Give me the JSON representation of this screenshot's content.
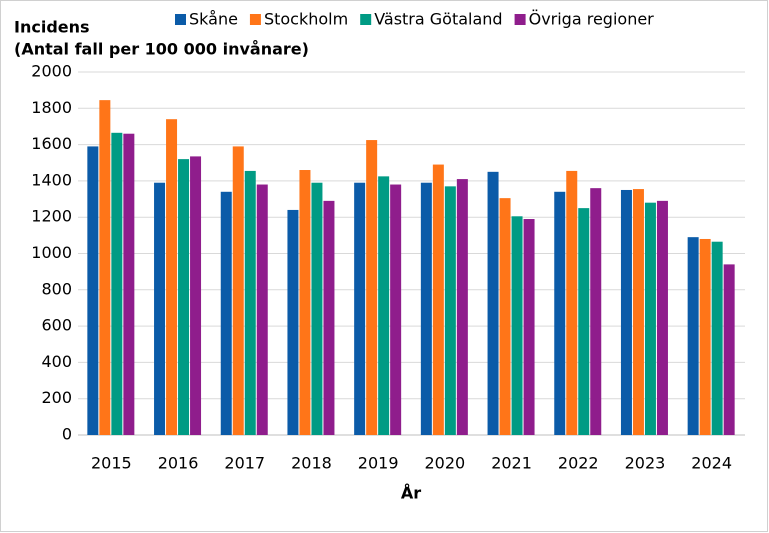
{
  "chart_data": {
    "type": "bar",
    "ylabel": [
      "Incidens",
      "(Antal fall per 100 000 invånare)"
    ],
    "xlabel": "År",
    "categories": [
      "2015",
      "2016",
      "2017",
      "2018",
      "2019",
      "2020",
      "2021",
      "2022",
      "2023",
      "2024"
    ],
    "series": [
      {
        "name": "Skåne",
        "color": "#0b5ba8",
        "values": [
          1590,
          1390,
          1340,
          1240,
          1390,
          1390,
          1450,
          1340,
          1350,
          1090
        ]
      },
      {
        "name": "Stockholm",
        "color": "#ff7518",
        "values": [
          1845,
          1740,
          1590,
          1460,
          1625,
          1490,
          1305,
          1455,
          1355,
          1080
        ]
      },
      {
        "name": "Västra Götaland",
        "color": "#009b84",
        "values": [
          1665,
          1520,
          1455,
          1390,
          1425,
          1370,
          1205,
          1250,
          1280,
          1065
        ]
      },
      {
        "name": "Övriga regioner",
        "color": "#8f1d8c",
        "values": [
          1660,
          1535,
          1380,
          1290,
          1380,
          1410,
          1190,
          1360,
          1290,
          940
        ]
      }
    ],
    "ylim": [
      0,
      2000
    ],
    "yticks": [
      0,
      200,
      400,
      600,
      800,
      1000,
      1200,
      1400,
      1600,
      1800,
      2000
    ],
    "grid": true,
    "legend": "top"
  }
}
